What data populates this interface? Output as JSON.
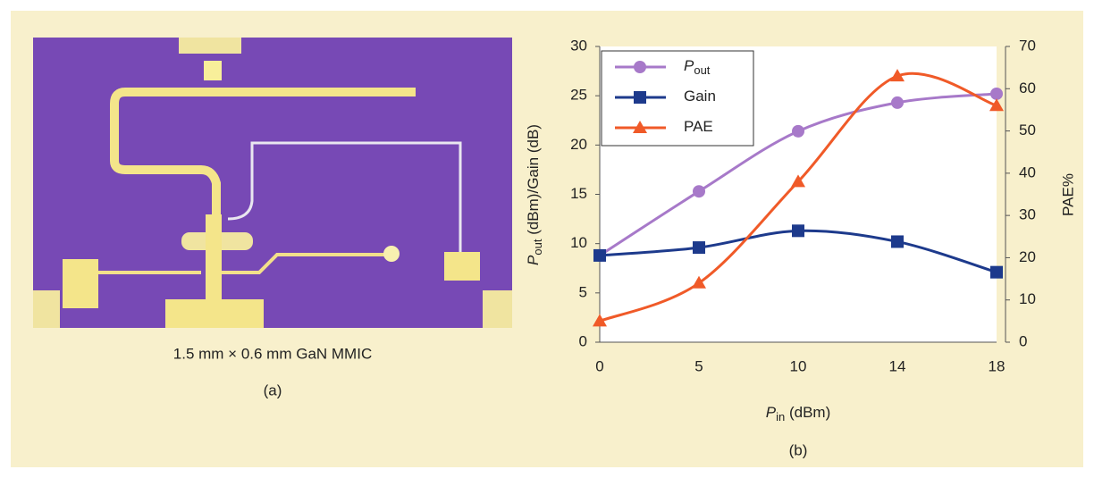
{
  "panel_a": {
    "caption": "1.5 mm × 0.6 mm GaN MMIC",
    "label": "(a)"
  },
  "chart_data": {
    "type": "line",
    "panel_label": "(b)",
    "x_label": [
      {
        "text": "P",
        "style": "italic"
      },
      {
        "text": "in",
        "style": "sub"
      },
      {
        "text": " (dBm)",
        "style": "normal"
      }
    ],
    "y_label": [
      {
        "text": "P",
        "style": "italic"
      },
      {
        "text": "out",
        "style": "sub"
      },
      {
        "text": " (dBm)/Gain (dB)",
        "style": "normal"
      }
    ],
    "y2_label": "PAE%",
    "categories": [
      "0",
      "5",
      "10",
      "14",
      "18"
    ],
    "ylim": [
      0,
      30
    ],
    "yticks": [
      0,
      5,
      10,
      15,
      20,
      25,
      30
    ],
    "y2lim": [
      0,
      70
    ],
    "y2ticks": [
      0,
      10,
      20,
      30,
      40,
      50,
      60,
      70
    ],
    "legend": "top-left",
    "series": [
      {
        "name": "P",
        "name_subscript": "out",
        "color": "#a779c9",
        "marker": "circle",
        "values": [
          8.8,
          15.3,
          21.4,
          24.3,
          25.2
        ]
      },
      {
        "name": "Gain",
        "color": "#1d3a8c",
        "marker": "square",
        "values": [
          8.8,
          9.6,
          11.3,
          10.2,
          7.1
        ]
      },
      {
        "name": "PAE",
        "color": "#f05a28",
        "marker": "triangle",
        "axis": "y2",
        "values": [
          5,
          14,
          38,
          63,
          56
        ]
      }
    ]
  }
}
